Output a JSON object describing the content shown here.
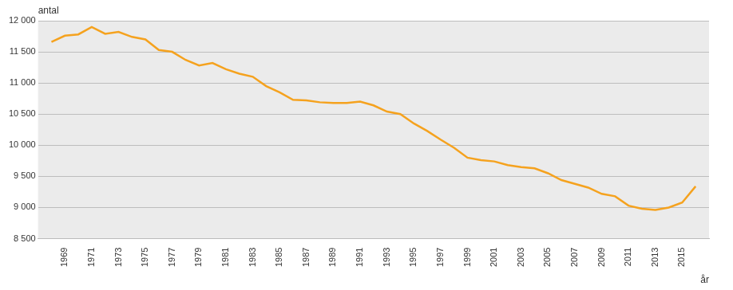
{
  "chart_data": {
    "type": "line",
    "ylabel": "antal",
    "xlabel": "år",
    "x": [
      1968,
      1969,
      1970,
      1971,
      1972,
      1973,
      1974,
      1975,
      1976,
      1977,
      1978,
      1979,
      1980,
      1981,
      1982,
      1983,
      1984,
      1985,
      1986,
      1987,
      1988,
      1989,
      1990,
      1991,
      1992,
      1993,
      1994,
      1995,
      1996,
      1997,
      1998,
      1999,
      2000,
      2001,
      2002,
      2003,
      2004,
      2005,
      2006,
      2007,
      2008,
      2009,
      2010,
      2011,
      2012,
      2013,
      2014,
      2015,
      2016
    ],
    "values": [
      11660,
      11760,
      11780,
      11900,
      11790,
      11820,
      11740,
      11700,
      11530,
      11500,
      11370,
      11280,
      11320,
      11220,
      11150,
      11100,
      10950,
      10850,
      10730,
      10720,
      10690,
      10680,
      10680,
      10700,
      10640,
      10540,
      10500,
      10350,
      10230,
      10090,
      9960,
      9800,
      9760,
      9740,
      9680,
      9650,
      9630,
      9550,
      9440,
      9380,
      9320,
      9220,
      9180,
      9030,
      8980,
      8960,
      9000,
      9080,
      9340
    ],
    "color": "#f5a21e",
    "xlim": [
      1967,
      2017
    ],
    "xticks": [
      1969,
      1971,
      1973,
      1975,
      1977,
      1979,
      1981,
      1983,
      1985,
      1987,
      1989,
      1991,
      1993,
      1995,
      1997,
      1999,
      2001,
      2003,
      2005,
      2007,
      2009,
      2011,
      2013,
      2015
    ],
    "ylim": [
      8500,
      12000
    ],
    "yticks": [
      {
        "value": 8500,
        "label": "8 500"
      },
      {
        "value": 9000,
        "label": "9 000"
      },
      {
        "value": 9500,
        "label": "9 500"
      },
      {
        "value": 10000,
        "label": "10 000"
      },
      {
        "value": 10500,
        "label": "10 500"
      },
      {
        "value": 11000,
        "label": "11 000"
      },
      {
        "value": 11500,
        "label": "11 500"
      },
      {
        "value": 12000,
        "label": "12 000"
      }
    ],
    "grid": true
  }
}
